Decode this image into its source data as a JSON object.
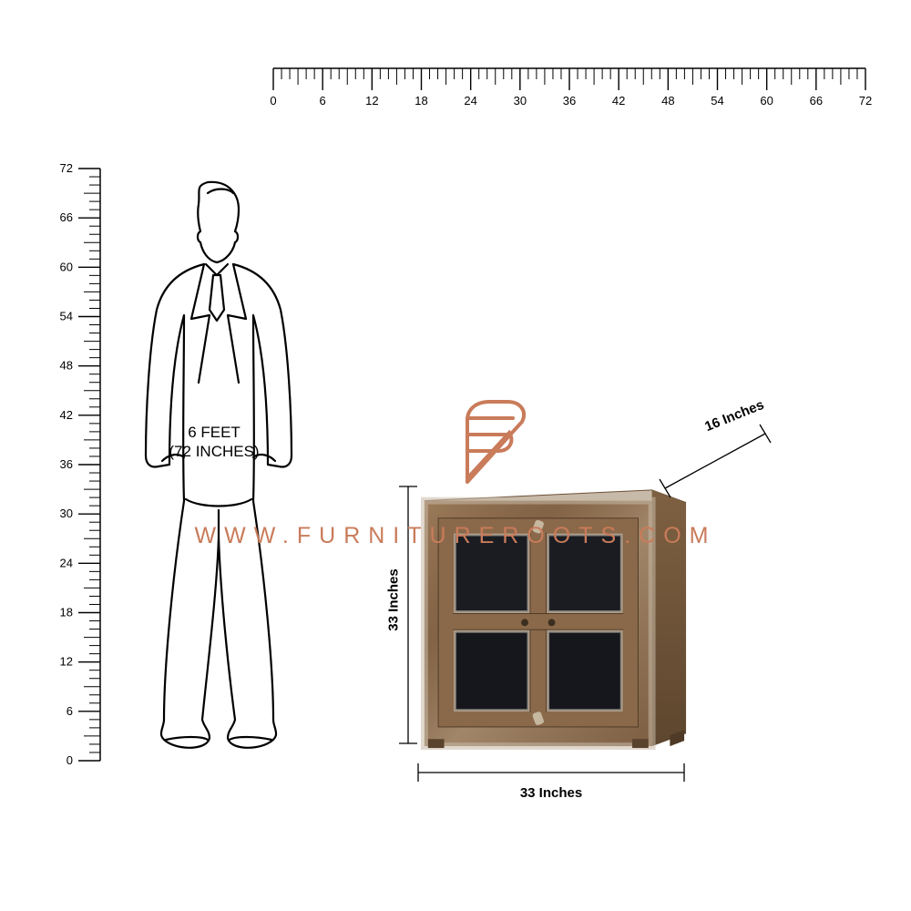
{
  "ruler_top": {
    "ticks": [
      0,
      6,
      12,
      18,
      24,
      30,
      36,
      42,
      48,
      54,
      60,
      66,
      72
    ],
    "minor_per_major": 6,
    "color": "#000000",
    "label_fontsize": 13
  },
  "ruler_left": {
    "ticks": [
      0,
      6,
      12,
      18,
      24,
      30,
      36,
      42,
      48,
      54,
      60,
      66,
      72
    ],
    "minor_per_major": 6,
    "color": "#000000",
    "label_fontsize": 13
  },
  "man": {
    "label_line1": "6 FEET",
    "label_line2": "(72 INCHES)",
    "stroke": "#000000"
  },
  "product": {
    "height_label": "33 Inches",
    "width_label": "33 Inches",
    "depth_label": "16 Inches",
    "wood_color": "#7a5a3e",
    "wood_light": "#a68565",
    "wood_wash": "#c8baa8",
    "panel_color": "#1a1c22",
    "line_color": "#000000"
  },
  "watermark": {
    "url": "WWW.FURNITUREROOTS.COM",
    "logo_color": "#c97b5a",
    "text_color": "#c97b5a"
  },
  "colors": {
    "background": "#ffffff",
    "text": "#000000"
  }
}
